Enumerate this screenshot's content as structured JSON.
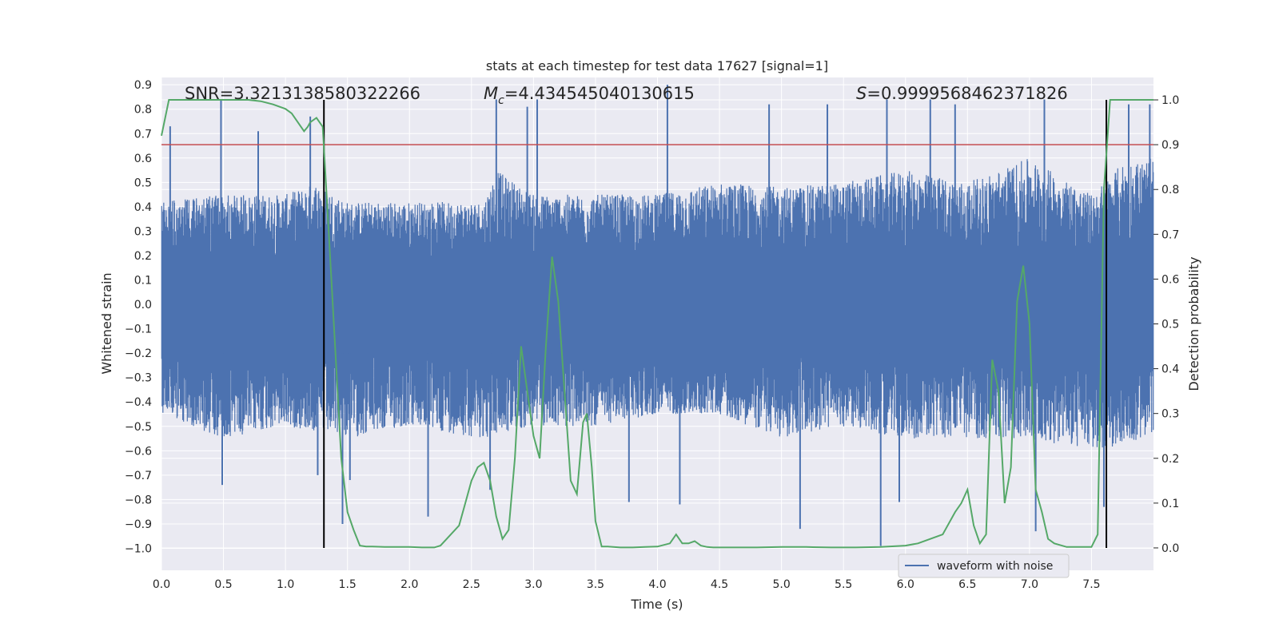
{
  "chart_data": {
    "type": "line",
    "title": "stats at each timestep for test data 17627 [signal=1]",
    "xlabel": "Time (s)",
    "ylabel_left": "Whitened strain",
    "ylabel_right": "Detection probability",
    "xlim": [
      0,
      8.0
    ],
    "ylim_left": [
      -1.09,
      0.93
    ],
    "ylim_right": [
      -0.05,
      1.05
    ],
    "x_ticks": [
      "0.0",
      "0.5",
      "1.0",
      "1.5",
      "2.0",
      "2.5",
      "3.0",
      "3.5",
      "4.0",
      "4.5",
      "5.0",
      "5.5",
      "6.0",
      "6.5",
      "7.0",
      "7.5"
    ],
    "y_left_ticks": [
      "0.9",
      "0.8",
      "0.7",
      "0.6",
      "0.5",
      "0.4",
      "0.3",
      "0.2",
      "0.1",
      "0.0",
      "−0.1",
      "−0.2",
      "−0.3",
      "−0.4",
      "−0.5",
      "−0.6",
      "−0.7",
      "−0.8",
      "−0.9",
      "−1.0"
    ],
    "y_right_ticks": [
      "1.0",
      "0.9",
      "0.8",
      "0.7",
      "0.6",
      "0.5",
      "0.4",
      "0.3",
      "0.2",
      "0.1",
      "0.0"
    ],
    "annotations": {
      "snr": "SNR=3.3213138580322266",
      "mc_symbol": "M",
      "mc_sub": "c",
      "mc_value": "=4.434545040130615",
      "s_symbol": "S",
      "s_value": "=0.9999568462371826"
    },
    "threshold": {
      "value": 0.9,
      "axis": "right",
      "color": "#c44e52"
    },
    "vertical_markers": [
      1.31,
      7.62
    ],
    "legend": {
      "label": "waveform with noise",
      "location": "lower-right"
    },
    "series": [
      {
        "name": "waveform with noise",
        "axis": "left",
        "color": "#4c72b0",
        "envelope_pos": [
          [
            0.0,
            0.42
          ],
          [
            0.5,
            0.45
          ],
          [
            1.0,
            0.45
          ],
          [
            1.25,
            0.5
          ],
          [
            1.5,
            0.42
          ],
          [
            2.0,
            0.42
          ],
          [
            2.6,
            0.42
          ],
          [
            2.7,
            0.55
          ],
          [
            3.0,
            0.45
          ],
          [
            3.5,
            0.45
          ],
          [
            4.0,
            0.45
          ],
          [
            4.5,
            0.5
          ],
          [
            5.0,
            0.48
          ],
          [
            5.5,
            0.5
          ],
          [
            6.0,
            0.55
          ],
          [
            6.5,
            0.5
          ],
          [
            7.0,
            0.6
          ],
          [
            7.5,
            0.45
          ],
          [
            7.75,
            0.58
          ],
          [
            8.0,
            0.6
          ]
        ],
        "envelope_neg": [
          [
            0.0,
            -0.45
          ],
          [
            0.5,
            -0.55
          ],
          [
            1.0,
            -0.5
          ],
          [
            1.5,
            -0.55
          ],
          [
            2.0,
            -0.5
          ],
          [
            2.6,
            -0.55
          ],
          [
            3.0,
            -0.5
          ],
          [
            3.5,
            -0.5
          ],
          [
            4.0,
            -0.45
          ],
          [
            4.5,
            -0.45
          ],
          [
            5.0,
            -0.55
          ],
          [
            5.5,
            -0.5
          ],
          [
            6.0,
            -0.55
          ],
          [
            6.5,
            -0.55
          ],
          [
            7.0,
            -0.55
          ],
          [
            7.5,
            -0.6
          ],
          [
            8.0,
            -0.55
          ]
        ],
        "spikes": [
          [
            0.07,
            0.73
          ],
          [
            0.48,
            0.84
          ],
          [
            0.78,
            0.71
          ],
          [
            1.2,
            0.77
          ],
          [
            2.7,
            0.84
          ],
          [
            2.95,
            0.81
          ],
          [
            3.03,
            0.84
          ],
          [
            4.08,
            0.9
          ],
          [
            4.9,
            0.82
          ],
          [
            5.37,
            0.82
          ],
          [
            5.85,
            0.84
          ],
          [
            6.2,
            0.84
          ],
          [
            6.4,
            0.82
          ],
          [
            7.12,
            0.84
          ],
          [
            7.8,
            0.82
          ],
          [
            7.97,
            0.82
          ],
          [
            0.49,
            -0.74
          ],
          [
            1.26,
            -0.7
          ],
          [
            1.46,
            -0.9
          ],
          [
            1.52,
            -0.72
          ],
          [
            2.15,
            -0.87
          ],
          [
            2.65,
            -0.76
          ],
          [
            3.77,
            -0.81
          ],
          [
            4.18,
            -0.82
          ],
          [
            5.15,
            -0.92
          ],
          [
            5.8,
            -0.99
          ],
          [
            5.95,
            -0.81
          ],
          [
            7.05,
            -0.93
          ],
          [
            7.6,
            -0.83
          ]
        ]
      },
      {
        "name": "detection probability",
        "axis": "right",
        "color": "#55a868",
        "x": [
          0.0,
          0.06,
          0.1,
          0.2,
          0.3,
          0.4,
          0.5,
          0.6,
          0.7,
          0.8,
          0.9,
          1.0,
          1.05,
          1.1,
          1.15,
          1.18,
          1.2,
          1.25,
          1.3,
          1.35,
          1.4,
          1.45,
          1.5,
          1.55,
          1.6,
          1.65,
          1.7,
          1.8,
          1.9,
          2.0,
          2.1,
          2.2,
          2.25,
          2.3,
          2.4,
          2.45,
          2.5,
          2.55,
          2.6,
          2.65,
          2.7,
          2.75,
          2.8,
          2.85,
          2.9,
          2.95,
          3.0,
          3.05,
          3.1,
          3.15,
          3.2,
          3.25,
          3.3,
          3.35,
          3.4,
          3.43,
          3.47,
          3.5,
          3.55,
          3.6,
          3.7,
          3.8,
          3.9,
          4.0,
          4.1,
          4.15,
          4.2,
          4.25,
          4.3,
          4.35,
          4.4,
          4.45,
          4.5,
          4.6,
          4.7,
          4.8,
          5.0,
          5.2,
          5.4,
          5.6,
          5.8,
          6.0,
          6.1,
          6.2,
          6.3,
          6.4,
          6.45,
          6.5,
          6.55,
          6.6,
          6.65,
          6.7,
          6.75,
          6.8,
          6.85,
          6.9,
          6.95,
          7.0,
          7.05,
          7.1,
          7.15,
          7.2,
          7.3,
          7.4,
          7.5,
          7.55,
          7.6,
          7.65,
          7.7,
          7.8,
          7.9,
          8.0
        ],
        "values": [
          0.92,
          1.0,
          1.0,
          1.0,
          1.0,
          1.0,
          1.0,
          1.0,
          1.0,
          0.997,
          0.99,
          0.98,
          0.97,
          0.95,
          0.93,
          0.94,
          0.95,
          0.96,
          0.94,
          0.7,
          0.45,
          0.2,
          0.08,
          0.04,
          0.005,
          0.003,
          0.003,
          0.002,
          0.002,
          0.002,
          0.001,
          0.001,
          0.005,
          0.02,
          0.05,
          0.1,
          0.15,
          0.18,
          0.19,
          0.15,
          0.07,
          0.02,
          0.04,
          0.2,
          0.45,
          0.35,
          0.25,
          0.2,
          0.45,
          0.65,
          0.55,
          0.35,
          0.15,
          0.12,
          0.28,
          0.3,
          0.18,
          0.06,
          0.003,
          0.003,
          0.001,
          0.001,
          0.002,
          0.003,
          0.01,
          0.03,
          0.01,
          0.01,
          0.015,
          0.005,
          0.002,
          0.001,
          0.001,
          0.001,
          0.001,
          0.001,
          0.002,
          0.002,
          0.001,
          0.001,
          0.002,
          0.005,
          0.01,
          0.02,
          0.03,
          0.08,
          0.1,
          0.13,
          0.05,
          0.01,
          0.03,
          0.42,
          0.35,
          0.1,
          0.18,
          0.55,
          0.63,
          0.5,
          0.13,
          0.08,
          0.02,
          0.01,
          0.002,
          0.002,
          0.002,
          0.03,
          0.8,
          1.0,
          1.0,
          1.0,
          1.0,
          1.0
        ]
      }
    ]
  }
}
